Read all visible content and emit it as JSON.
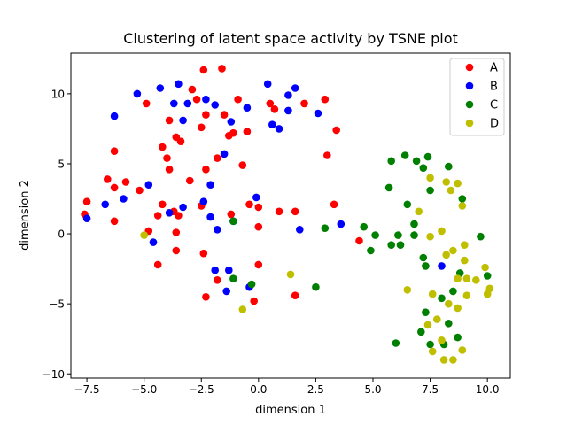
{
  "chart_data": {
    "type": "scatter",
    "title": "Clustering of latent space activity by TSNE plot",
    "xlabel": "dimension 1",
    "ylabel": "dimension 2",
    "xlim": [
      -8.2,
      11.0
    ],
    "ylim": [
      -10.3,
      12.9
    ],
    "xticks": [
      -7.5,
      -5.0,
      -2.5,
      0.0,
      2.5,
      5.0,
      7.5,
      10.0
    ],
    "xtick_labels": [
      "−7.5",
      "−5.0",
      "−2.5",
      "0.0",
      "2.5",
      "5.0",
      "7.5",
      "10.0"
    ],
    "yticks": [
      -10,
      -5,
      0,
      5,
      10
    ],
    "ytick_labels": [
      "−10",
      "−5",
      "0",
      "5",
      "10"
    ],
    "grid": false,
    "legend_position": "top-right",
    "series": [
      {
        "name": "A",
        "color": "#ff0000",
        "points": [
          [
            -2.4,
            11.7
          ],
          [
            -1.6,
            11.8
          ],
          [
            -2.9,
            10.3
          ],
          [
            -0.9,
            9.6
          ],
          [
            -4.9,
            9.3
          ],
          [
            -2.7,
            9.6
          ],
          [
            -1.5,
            8.5
          ],
          [
            -2.3,
            8.5
          ],
          [
            -3.9,
            8.1
          ],
          [
            -3.4,
            6.6
          ],
          [
            -3.6,
            6.9
          ],
          [
            -2.5,
            7.6
          ],
          [
            -1.3,
            7.0
          ],
          [
            -1.1,
            7.2
          ],
          [
            -0.5,
            7.3
          ],
          [
            -6.3,
            5.9
          ],
          [
            -4.2,
            6.2
          ],
          [
            -4.0,
            5.4
          ],
          [
            -1.8,
            5.4
          ],
          [
            -3.9,
            4.6
          ],
          [
            -2.3,
            4.6
          ],
          [
            -0.7,
            4.9
          ],
          [
            -6.6,
            3.9
          ],
          [
            -5.8,
            3.7
          ],
          [
            -6.3,
            3.3
          ],
          [
            -5.2,
            3.1
          ],
          [
            -3.0,
            3.8
          ],
          [
            -7.5,
            2.3
          ],
          [
            -4.2,
            2.1
          ],
          [
            -3.7,
            1.6
          ],
          [
            -2.5,
            2.0
          ],
          [
            -7.6,
            1.4
          ],
          [
            -6.3,
            0.9
          ],
          [
            -4.4,
            1.3
          ],
          [
            -3.5,
            1.3
          ],
          [
            -1.2,
            1.4
          ],
          [
            -0.4,
            2.1
          ],
          [
            0.0,
            1.9
          ],
          [
            0.5,
            9.3
          ],
          [
            0.7,
            8.9
          ],
          [
            2.0,
            9.3
          ],
          [
            2.9,
            9.6
          ],
          [
            3.4,
            7.4
          ],
          [
            3.0,
            5.6
          ],
          [
            3.3,
            2.1
          ],
          [
            0.9,
            1.6
          ],
          [
            1.6,
            1.6
          ],
          [
            -4.8,
            0.2
          ],
          [
            -3.6,
            0.1
          ],
          [
            0.0,
            0.5
          ],
          [
            -3.6,
            -1.2
          ],
          [
            -2.4,
            -1.4
          ],
          [
            -4.4,
            -2.2
          ],
          [
            0.0,
            -2.2
          ],
          [
            -1.8,
            -3.3
          ],
          [
            -2.3,
            -4.5
          ],
          [
            -0.2,
            -4.8
          ],
          [
            1.6,
            -4.4
          ],
          [
            4.4,
            -0.5
          ]
        ]
      },
      {
        "name": "B",
        "color": "#0000ff",
        "points": [
          [
            -3.5,
            10.7
          ],
          [
            -4.3,
            10.4
          ],
          [
            -5.3,
            10.0
          ],
          [
            -2.3,
            9.6
          ],
          [
            -3.7,
            9.3
          ],
          [
            -3.1,
            9.3
          ],
          [
            -1.9,
            9.2
          ],
          [
            -0.5,
            9.0
          ],
          [
            0.4,
            10.7
          ],
          [
            1.6,
            10.4
          ],
          [
            1.3,
            9.9
          ],
          [
            -6.3,
            8.4
          ],
          [
            -3.3,
            8.1
          ],
          [
            -1.2,
            8.0
          ],
          [
            1.3,
            8.8
          ],
          [
            2.6,
            8.6
          ],
          [
            0.6,
            7.8
          ],
          [
            0.9,
            7.5
          ],
          [
            -1.5,
            5.7
          ],
          [
            -4.8,
            3.5
          ],
          [
            -2.1,
            3.5
          ],
          [
            -0.1,
            2.6
          ],
          [
            -5.9,
            2.5
          ],
          [
            -6.7,
            2.1
          ],
          [
            -3.3,
            1.9
          ],
          [
            -2.4,
            2.3
          ],
          [
            -3.9,
            1.5
          ],
          [
            -7.5,
            1.1
          ],
          [
            -2.1,
            1.2
          ],
          [
            -1.8,
            0.3
          ],
          [
            -1.1,
            0.9
          ],
          [
            3.6,
            0.7
          ],
          [
            1.8,
            0.3
          ],
          [
            -4.6,
            -0.6
          ],
          [
            -1.9,
            -2.6
          ],
          [
            -1.3,
            -2.6
          ],
          [
            -0.4,
            -3.8
          ],
          [
            -1.4,
            -4.1
          ],
          [
            8.0,
            -2.3
          ]
        ]
      },
      {
        "name": "C",
        "color": "#008000",
        "points": [
          [
            6.4,
            5.6
          ],
          [
            7.4,
            5.5
          ],
          [
            6.9,
            5.2
          ],
          [
            5.8,
            5.2
          ],
          [
            7.2,
            4.7
          ],
          [
            8.3,
            4.8
          ],
          [
            7.5,
            3.1
          ],
          [
            5.7,
            3.3
          ],
          [
            6.5,
            2.1
          ],
          [
            8.9,
            2.5
          ],
          [
            6.8,
            0.7
          ],
          [
            4.6,
            0.5
          ],
          [
            2.9,
            0.4
          ],
          [
            5.1,
            -0.1
          ],
          [
            6.1,
            -0.1
          ],
          [
            6.8,
            -0.1
          ],
          [
            9.7,
            -0.2
          ],
          [
            5.8,
            -0.8
          ],
          [
            6.2,
            -0.8
          ],
          [
            4.9,
            -1.2
          ],
          [
            7.2,
            -1.7
          ],
          [
            7.3,
            -2.3
          ],
          [
            8.8,
            -2.8
          ],
          [
            10.0,
            -3.0
          ],
          [
            8.5,
            -4.1
          ],
          [
            8.0,
            -4.6
          ],
          [
            7.3,
            -5.6
          ],
          [
            8.3,
            -6.4
          ],
          [
            7.1,
            -7.0
          ],
          [
            8.7,
            -7.4
          ],
          [
            7.5,
            -7.9
          ],
          [
            8.1,
            -7.9
          ],
          [
            6.0,
            -7.8
          ],
          [
            -1.1,
            0.9
          ],
          [
            -0.3,
            -3.6
          ],
          [
            -1.1,
            -3.2
          ],
          [
            2.5,
            -3.8
          ]
        ]
      },
      {
        "name": "D",
        "color": "#bfbf00",
        "points": [
          [
            7.5,
            4.0
          ],
          [
            8.2,
            3.7
          ],
          [
            8.7,
            3.6
          ],
          [
            8.4,
            3.1
          ],
          [
            8.9,
            2.0
          ],
          [
            7.0,
            1.6
          ],
          [
            7.5,
            -0.2
          ],
          [
            8.0,
            0.2
          ],
          [
            8.5,
            -1.2
          ],
          [
            9.0,
            -0.8
          ],
          [
            9.0,
            -1.9
          ],
          [
            8.2,
            -1.5
          ],
          [
            9.9,
            -2.4
          ],
          [
            8.7,
            -3.2
          ],
          [
            9.1,
            -3.2
          ],
          [
            9.5,
            -3.3
          ],
          [
            10.1,
            -3.9
          ],
          [
            10.0,
            -4.3
          ],
          [
            9.1,
            -4.4
          ],
          [
            7.6,
            -4.3
          ],
          [
            6.5,
            -4.0
          ],
          [
            8.3,
            -5.0
          ],
          [
            8.7,
            -5.3
          ],
          [
            7.8,
            -6.1
          ],
          [
            7.4,
            -6.5
          ],
          [
            8.0,
            -7.6
          ],
          [
            7.6,
            -8.4
          ],
          [
            8.9,
            -8.3
          ],
          [
            8.1,
            -9.0
          ],
          [
            8.5,
            -9.0
          ],
          [
            -5.0,
            -0.1
          ],
          [
            1.4,
            -2.9
          ],
          [
            -0.7,
            -5.4
          ]
        ]
      }
    ]
  }
}
